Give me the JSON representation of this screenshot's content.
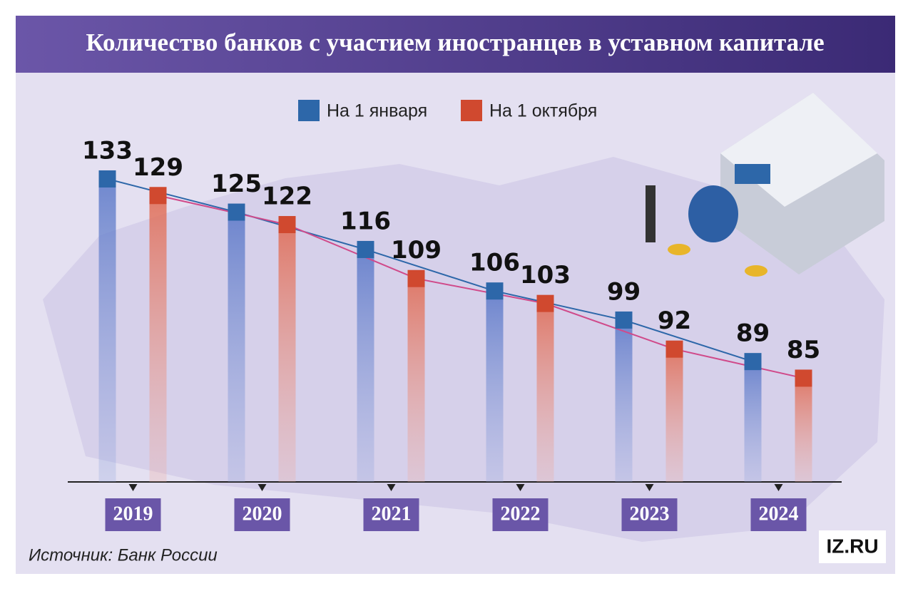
{
  "chart_data": {
    "type": "bar",
    "title": "Количество банков с участием иностранцев в уставном капитале",
    "categories": [
      "2019",
      "2020",
      "2021",
      "2022",
      "2023",
      "2024"
    ],
    "series": [
      {
        "name": "На 1 января",
        "color": "#2d67a9",
        "values": [
          133,
          125,
          116,
          106,
          99,
          89
        ]
      },
      {
        "name": "На 1 октября",
        "color": "#d0492f",
        "values": [
          129,
          122,
          109,
          103,
          92,
          85
        ]
      }
    ],
    "ylim": [
      60,
      150
    ],
    "source": "Источник: Банк России",
    "logo": "IZ.RU"
  }
}
